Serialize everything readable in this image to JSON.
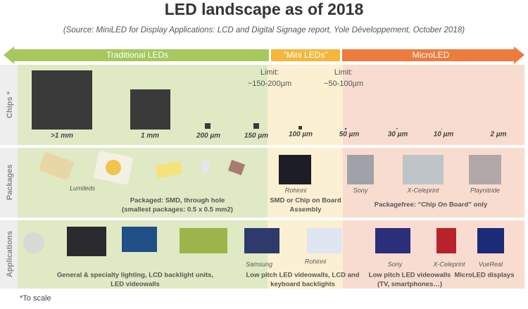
{
  "header": {
    "title": "LED landscape as of 2018",
    "subtitle": "(Source: MiniLED for Display Applications: LCD and Digital Signage report, Yole Développement, October 2018)"
  },
  "segments": [
    "Traditional LEDs",
    "“Mini LEDs”",
    "MicroLED"
  ],
  "rows": [
    "Chips *",
    "Packages",
    "Applications"
  ],
  "chips": [
    ">1 mm",
    "1 mm",
    "200 µm",
    "150 µm",
    "100 µm",
    "50 µm",
    "30 µm",
    "10 µm",
    "2 µm"
  ],
  "limits": [
    {
      "title": "Limit:",
      "range": "~150-200µm"
    },
    {
      "title": "Limit:",
      "range": "~50-100µm"
    }
  ],
  "packages": {
    "sources": [
      "Lumileds",
      "Rohinni",
      "Sony",
      "X-Celeprint",
      "Playnitride"
    ],
    "captions": [
      [
        "Packaged: SMD, through hole",
        "(smallest packages: 0.5 x 0.5 mm2)"
      ],
      [
        "SMD or Chip on Board",
        "Assembly"
      ],
      [
        "Packagefree: “Chip On Board” only"
      ]
    ]
  },
  "applications": {
    "sources": [
      "Samsung",
      "Rohinni",
      "Sony",
      "X-Celeprint",
      "VueReal"
    ],
    "captions": [
      [
        "General & specialty lighting, LCD backlight units,",
        "LED videowalls"
      ],
      [
        "Low pitch LED videowalls, LCD and",
        "keyboard  backlights"
      ],
      [
        "Low pitch LED videowalls",
        "(TV, smartphones…)"
      ],
      [
        "MicroLED displays"
      ]
    ]
  },
  "footnote": "*To scale"
}
